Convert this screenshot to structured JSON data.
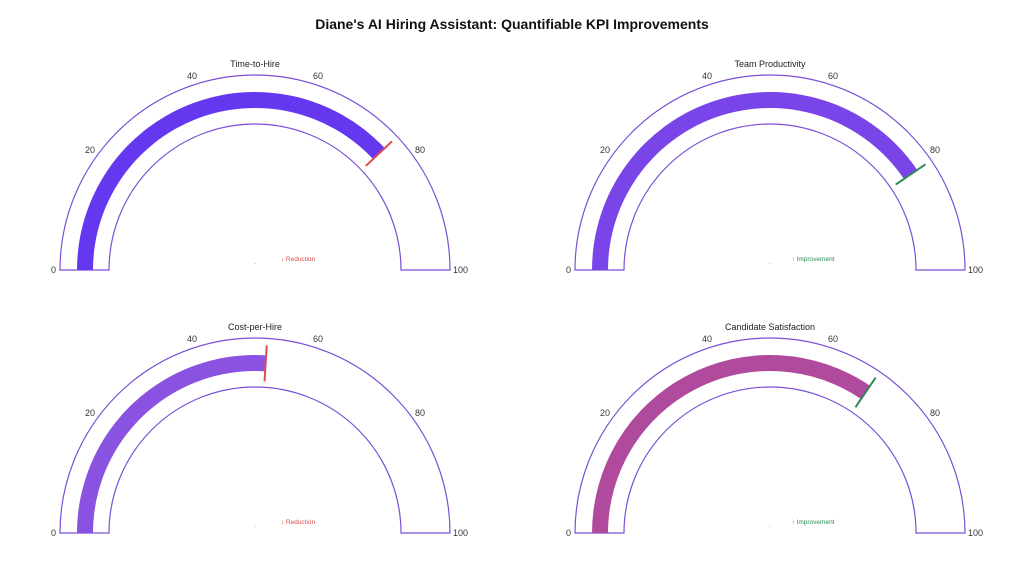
{
  "title": "Diane's AI Hiring Assistant: Quantifiable KPI Improvements",
  "colors": {
    "outline": "#7b4fd6",
    "reduction": "#e04b4b",
    "improvement": "#2e8b57"
  },
  "chart_data": [
    {
      "type": "gauge",
      "title": "Time-to-Hire",
      "value": 76,
      "threshold": 76,
      "range": [
        0,
        100
      ],
      "ticks": [
        "0",
        "20",
        "40",
        "60",
        "80",
        "100"
      ],
      "annotation": "↓ Reduction",
      "center_text": "·",
      "bar_color": "#6538f0",
      "threshold_color": "#e04b4b",
      "annotation_color": "#e04b4b"
    },
    {
      "type": "gauge",
      "title": "Team Productivity",
      "value": 81,
      "threshold": 81,
      "range": [
        0,
        100
      ],
      "ticks": [
        "0",
        "20",
        "40",
        "60",
        "80",
        "100"
      ],
      "annotation": "↑ Improvement",
      "center_text": "·",
      "bar_color": "#7a45e8",
      "threshold_color": "#2e8b57",
      "annotation_color": "#2e8b57"
    },
    {
      "type": "gauge",
      "title": "Cost-per-Hire",
      "value": 52,
      "threshold": 52,
      "range": [
        0,
        100
      ],
      "ticks": [
        "0",
        "20",
        "40",
        "60",
        "80",
        "100"
      ],
      "annotation": "↓ Reduction",
      "center_text": "·",
      "bar_color": "#8a52e0",
      "threshold_color": "#e04b4b",
      "annotation_color": "#e04b4b"
    },
    {
      "type": "gauge",
      "title": "Candidate Satisfaction",
      "value": 69,
      "threshold": 69,
      "range": [
        0,
        100
      ],
      "ticks": [
        "0",
        "20",
        "40",
        "60",
        "80",
        "100"
      ],
      "annotation": "↑ Improvement",
      "center_text": "·",
      "bar_color": "#b04a9c",
      "threshold_color": "#2e8b57",
      "annotation_color": "#2e8b57"
    }
  ]
}
